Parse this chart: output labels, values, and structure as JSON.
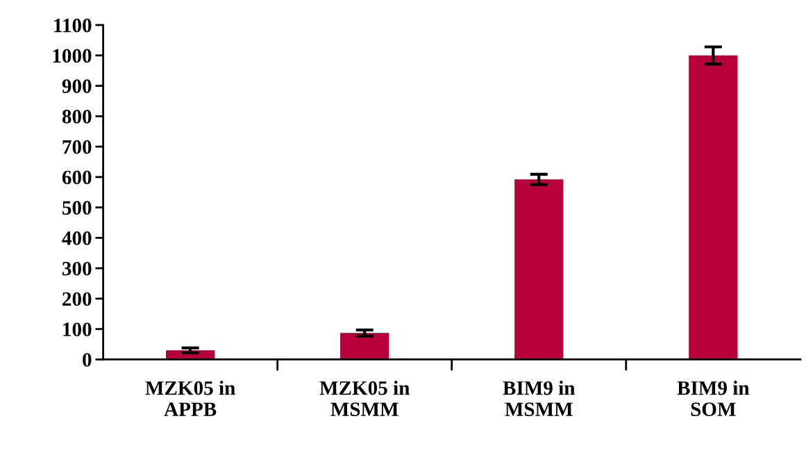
{
  "chart_data": {
    "type": "bar",
    "categories": [
      "MZK05 in\nAPPB",
      "MZK05 in\nMSMM",
      "BIM9 in\nMSMM",
      "BIM9 in\nSOM"
    ],
    "values": [
      30,
      87,
      592,
      1000
    ],
    "errors": [
      8,
      10,
      17,
      28
    ],
    "color": "#b8003a",
    "ylim": [
      0,
      1100
    ],
    "yticks": [
      0,
      100,
      200,
      300,
      400,
      500,
      600,
      700,
      800,
      900,
      1000,
      1100
    ],
    "grid": false
  }
}
